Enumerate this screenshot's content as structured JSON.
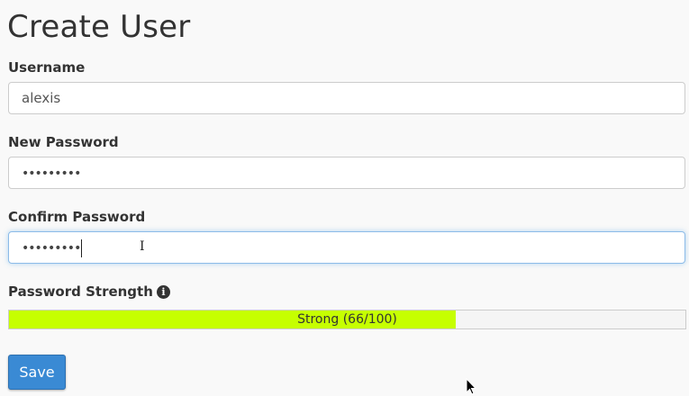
{
  "page": {
    "title": "Create User"
  },
  "form": {
    "username": {
      "label": "Username",
      "value": "alexis"
    },
    "new_password": {
      "label": "New Password",
      "value": "•••••••••"
    },
    "confirm_password": {
      "label": "Confirm Password",
      "value": "•••••••••"
    },
    "strength": {
      "label": "Password Strength",
      "icon": "info-icon",
      "text": "Strong (66/100)",
      "percent": 66,
      "color": "#c6ff00"
    },
    "save_label": "Save"
  }
}
